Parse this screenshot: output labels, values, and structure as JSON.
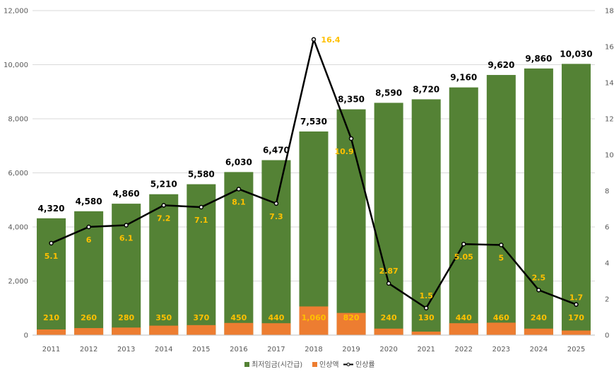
{
  "chart_data": {
    "type": "bar",
    "categories": [
      "2011",
      "2012",
      "2013",
      "2014",
      "2015",
      "2016",
      "2017",
      "2018",
      "2019",
      "2020",
      "2021",
      "2022",
      "2023",
      "2024",
      "2025"
    ],
    "series": [
      {
        "name": "최저임금(시간급)",
        "type": "bar",
        "axis": "left",
        "color": "#548235",
        "values": [
          4320,
          4580,
          4860,
          5210,
          5580,
          6030,
          6470,
          7530,
          8350,
          8590,
          8720,
          9160,
          9620,
          9860,
          10030
        ],
        "labels": [
          "4,320",
          "4,580",
          "4,860",
          "5,210",
          "5,580",
          "6,030",
          "6,470",
          "7,530",
          "8,350",
          "8,590",
          "8,720",
          "9,160",
          "9,620",
          "9,860",
          "10,030"
        ]
      },
      {
        "name": "인상액",
        "type": "bar",
        "axis": "left",
        "color": "#ed7d31",
        "values": [
          210,
          260,
          280,
          350,
          370,
          450,
          440,
          1060,
          820,
          240,
          130,
          440,
          460,
          240,
          170
        ],
        "labels": [
          "210",
          "260",
          "280",
          "350",
          "370",
          "450",
          "440",
          "1,060",
          "820",
          "240",
          "130",
          "440",
          "460",
          "240",
          "170"
        ]
      },
      {
        "name": "인상률",
        "type": "line",
        "axis": "right",
        "color": "#000000",
        "values": [
          5.1,
          6,
          6.1,
          7.2,
          7.1,
          8.1,
          7.3,
          16.4,
          10.9,
          2.87,
          1.5,
          5.05,
          5,
          2.5,
          1.7
        ],
        "labels": [
          "5.1",
          "6",
          "6.1",
          "7.2",
          "7.1",
          "8.1",
          "7.3",
          "16.4",
          "10.9",
          "2.87",
          "1.5",
          "5.05",
          "5",
          "2.5",
          "1.7"
        ]
      }
    ],
    "y_left": {
      "min": 0,
      "max": 12000,
      "step": 2000,
      "tick_labels": [
        "0",
        "2,000",
        "4,000",
        "6,000",
        "8,000",
        "10,000",
        "12,000"
      ]
    },
    "y_right": {
      "min": 0,
      "max": 18,
      "step": 2,
      "tick_labels": [
        "0",
        "2",
        "4",
        "6",
        "8",
        "10",
        "12",
        "14",
        "16",
        "18"
      ]
    },
    "grid": true,
    "legend_position": "bottom",
    "title": "",
    "xlabel": "",
    "ylabel": ""
  }
}
